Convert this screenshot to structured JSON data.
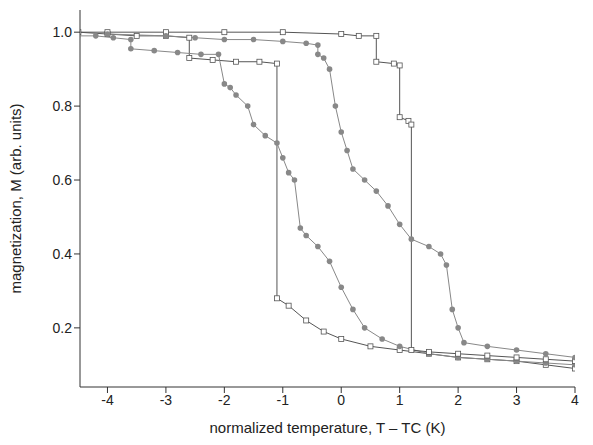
{
  "chart_data": {
    "type": "line",
    "x_label": "normalized temperature, T – TC (K)",
    "y_label": "magnetization, M (arb. units)",
    "xlim": [
      -4.47,
      4
    ],
    "xticks": [
      -4,
      -3,
      -2,
      -1,
      0,
      1,
      2,
      3,
      4
    ],
    "ylim": [
      0.04,
      1.06
    ],
    "yticks": [
      0.2,
      0.4,
      0.6,
      0.8,
      {
        "value": 1,
        "label": "1.0"
      }
    ],
    "series": [
      {
        "color": "#555555",
        "marker": "open_square",
        "x": [
          -4.5,
          -4,
          -3.5,
          -3,
          -2.6,
          -2.6,
          -2.2,
          -1.8,
          -1.4,
          -1.1,
          -1.1,
          -0.9,
          -0.6,
          -0.3,
          0,
          0.5,
          1,
          1.5,
          2,
          2.5,
          3,
          3.5,
          4
        ],
        "values": [
          1.0,
          0.995,
          0.99,
          0.99,
          0.985,
          0.93,
          0.925,
          0.92,
          0.92,
          0.915,
          0.28,
          0.26,
          0.22,
          0.19,
          0.17,
          0.15,
          0.14,
          0.13,
          0.12,
          0.115,
          0.11,
          0.1,
          0.09
        ]
      },
      {
        "color": "#888888",
        "marker": "circle",
        "x": [
          -4.5,
          -4.2,
          -3.9,
          -3.6,
          -3.6,
          -3.2,
          -2.8,
          -2.4,
          -2.1,
          -2.0,
          -1.9,
          -1.8,
          -1.6,
          -1.5,
          -1.3,
          -1.1,
          -1.0,
          -0.9,
          -0.8,
          -0.7,
          -0.6,
          -0.4,
          -0.2,
          0,
          0.2,
          0.4,
          0.7,
          1,
          1.5,
          2,
          2.5,
          3,
          3.5,
          4
        ],
        "values": [
          0.99,
          0.99,
          0.985,
          0.98,
          0.955,
          0.95,
          0.945,
          0.94,
          0.94,
          0.86,
          0.85,
          0.83,
          0.8,
          0.75,
          0.72,
          0.7,
          0.66,
          0.62,
          0.6,
          0.47,
          0.45,
          0.42,
          0.38,
          0.31,
          0.25,
          0.2,
          0.17,
          0.15,
          0.13,
          0.12,
          0.115,
          0.11,
          0.105,
          0.1
        ]
      },
      {
        "color": "#555555",
        "marker": "open_square",
        "x": [
          -4.5,
          -4,
          -3,
          -2,
          -1,
          0,
          0.3,
          0.6,
          0.6,
          0.9,
          1.0,
          1.0,
          1.15,
          1.2,
          1.2,
          1.5,
          2,
          2.5,
          3,
          3.5,
          4
        ],
        "values": [
          1.0,
          1.0,
          1.0,
          1.0,
          1.0,
          0.995,
          0.99,
          0.99,
          0.92,
          0.915,
          0.91,
          0.77,
          0.76,
          0.75,
          0.14,
          0.135,
          0.13,
          0.125,
          0.12,
          0.115,
          0.11
        ]
      },
      {
        "color": "#888888",
        "marker": "circle",
        "x": [
          -4,
          -3,
          -2.5,
          -2,
          -1.5,
          -1,
          -0.6,
          -0.4,
          -0.4,
          -0.3,
          -0.2,
          -0.1,
          0,
          0.1,
          0.2,
          0.4,
          0.6,
          0.8,
          1.0,
          1.2,
          1.5,
          1.7,
          1.8,
          1.9,
          2.0,
          2.1,
          2.5,
          3,
          3.5,
          4
        ],
        "values": [
          0.995,
          0.99,
          0.985,
          0.98,
          0.98,
          0.975,
          0.97,
          0.965,
          0.94,
          0.93,
          0.9,
          0.8,
          0.73,
          0.68,
          0.63,
          0.6,
          0.57,
          0.53,
          0.48,
          0.44,
          0.42,
          0.4,
          0.37,
          0.25,
          0.2,
          0.16,
          0.15,
          0.14,
          0.13,
          0.12
        ]
      }
    ]
  }
}
